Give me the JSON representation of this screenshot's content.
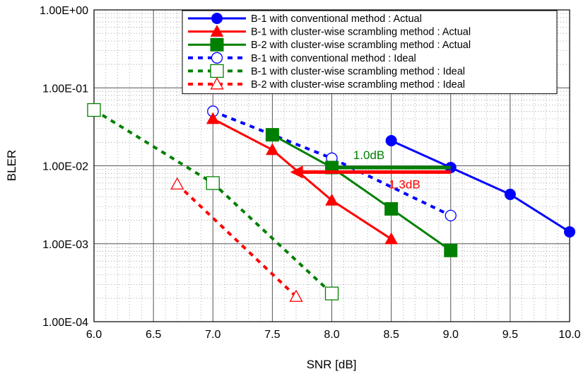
{
  "chart_data": {
    "type": "line",
    "title": "",
    "xlabel": "SNR [dB]",
    "ylabel": "BLER",
    "xlim": [
      6.0,
      10.0
    ],
    "ylim": [
      0.0001,
      1.0
    ],
    "y_scale": "log",
    "grid": true,
    "legend_position": "top-right",
    "x_ticks": [
      "6.0",
      "6.5",
      "7.0",
      "7.5",
      "8.0",
      "8.5",
      "9.0",
      "9.5",
      "10.0"
    ],
    "y_ticks": [
      "1.00E+00",
      "1.00E-01",
      "1.00E-02",
      "1.00E-03",
      "1.00E-04"
    ],
    "series": [
      {
        "name": "B-1 with conventional method : Actual",
        "color": "#0000ff",
        "marker": "filled-circle",
        "line": "solid",
        "x": [
          8.5,
          9.0,
          9.5,
          10.0
        ],
        "y": [
          0.021,
          0.0095,
          0.0043,
          0.00142
        ]
      },
      {
        "name": "B-1 with cluster-wise scrambling method : Actual",
        "color": "#ff0000",
        "marker": "filled-triangle",
        "line": "solid",
        "x": [
          7.0,
          7.5,
          8.0,
          8.5
        ],
        "y": [
          0.04,
          0.016,
          0.0036,
          0.00115
        ]
      },
      {
        "name": "B-2 with cluster-wise scrambling method : Actual",
        "color": "#008000",
        "marker": "filled-square",
        "line": "solid",
        "x": [
          7.5,
          8.0,
          8.5,
          9.0
        ],
        "y": [
          0.025,
          0.0095,
          0.0028,
          0.00082
        ]
      },
      {
        "name": "B-1 with conventional method : Ideal",
        "color": "#0000ff",
        "marker": "open-circle",
        "line": "dashed",
        "x": [
          7.0,
          8.0,
          9.0
        ],
        "y": [
          0.05,
          0.0125,
          0.0023
        ]
      },
      {
        "name": "B-1 with cluster-wise scrambling method : Ideal",
        "color": "#008000",
        "marker": "open-square",
        "line": "dashed",
        "x": [
          6.0,
          7.0,
          8.0
        ],
        "y": [
          0.052,
          0.006,
          0.00023
        ]
      },
      {
        "name": "B-2 with cluster-wise scrambling method : Ideal",
        "color": "#ff0000",
        "marker": "open-triangle",
        "line": "dashed",
        "x": [
          6.7,
          7.7
        ],
        "y": [
          0.0058,
          0.00021
        ]
      }
    ],
    "annotations": [
      {
        "text": "1.0dB",
        "color": "#008000",
        "arrow_from": [
          9.0,
          0.0095
        ],
        "arrow_to": [
          7.95,
          0.0095
        ]
      },
      {
        "text": "1.3dB",
        "color": "#ff0000",
        "arrow_from": [
          9.0,
          0.0083
        ],
        "arrow_to": [
          7.65,
          0.0083
        ]
      }
    ]
  }
}
